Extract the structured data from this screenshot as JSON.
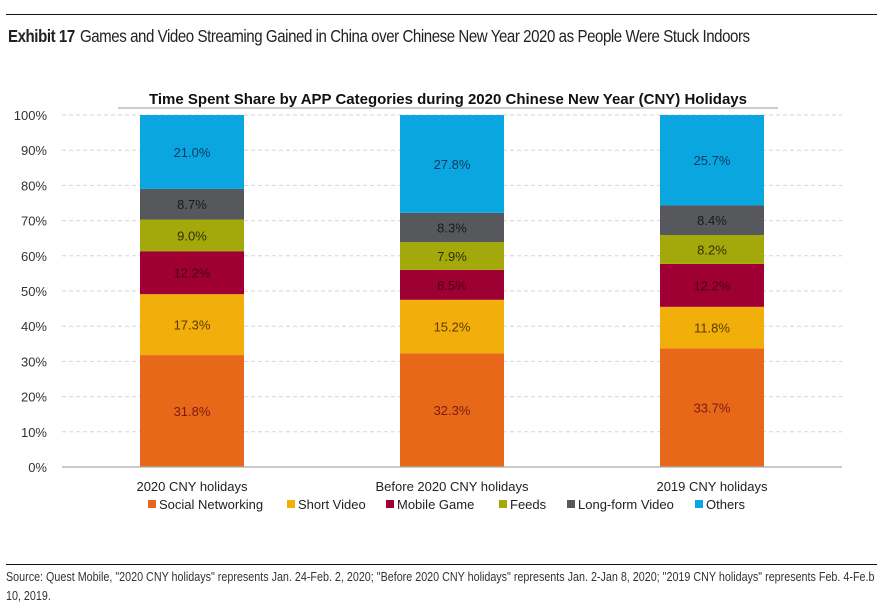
{
  "header": {
    "exhibit_number": "Exhibit 17",
    "exhibit_title": "Games and Video Streaming Gained in China over Chinese New Year 2020 as People Were Stuck Indoors"
  },
  "footer": {
    "source": "Source: Quest Mobile, \"2020 CNY holidays\" represents Jan. 24-Feb. 2, 2020; \"Before 2020 CNY holidays\" represents Jan. 2-Jan 8, 2020; \"2019 CNY holidays\" represents Feb. 4-Fe.b 10, 2019."
  },
  "chart_data": {
    "type": "bar",
    "stacked": true,
    "title": "Time Spent Share by APP Categories during 2020 Chinese New Year (CNY) Holidays",
    "xlabel": "",
    "ylabel": "",
    "ylim": [
      0,
      100
    ],
    "yticks": [
      "0%",
      "10%",
      "20%",
      "30%",
      "40%",
      "50%",
      "60%",
      "70%",
      "80%",
      "90%",
      "100%"
    ],
    "grid": true,
    "legend_position": "bottom",
    "categories": [
      "2020 CNY holidays",
      "Before 2020 CNY holidays",
      "2019 CNY holidays"
    ],
    "series": [
      {
        "name": "Social Networking",
        "color": "#E8681A",
        "label_color": "#7a1a10",
        "values": [
          31.8,
          32.3,
          33.7
        ]
      },
      {
        "name": "Short Video",
        "color": "#F2AE0B",
        "label_color": "#5a3a00",
        "values": [
          17.3,
          15.2,
          11.8
        ]
      },
      {
        "name": "Mobile Game",
        "color": "#9E0033",
        "label_color": "#4a0018",
        "values": [
          12.2,
          8.5,
          12.2
        ]
      },
      {
        "name": "Feeds",
        "color": "#A3A90A",
        "label_color": "#2f3100",
        "values": [
          9.0,
          7.9,
          8.2
        ]
      },
      {
        "name": "Long-form Video",
        "color": "#57585B",
        "label_color": "#1a1a1a",
        "values": [
          8.7,
          8.3,
          8.4
        ]
      },
      {
        "name": "Others",
        "color": "#0AA6E0",
        "label_color": "#0e3a66",
        "values": [
          21.0,
          27.8,
          25.7
        ]
      }
    ],
    "data_labels": [
      [
        "31.8%",
        "17.3%",
        "12.2%",
        "9.0%",
        "8.7%",
        "21.0%"
      ],
      [
        "32.3%",
        "15.2%",
        "8.5%",
        "7.9%",
        "8.3%",
        "27.8%"
      ],
      [
        "33.7%",
        "11.8%",
        "12.2%",
        "8.2%",
        "8.4%",
        "25.7%"
      ]
    ]
  }
}
